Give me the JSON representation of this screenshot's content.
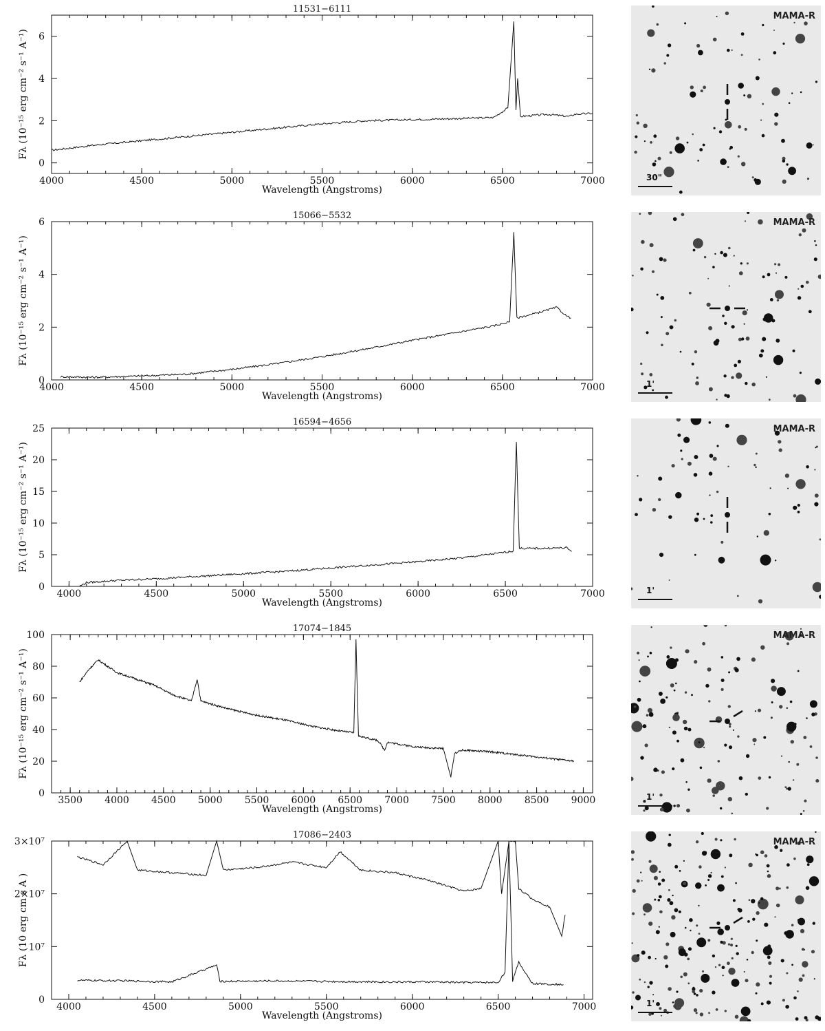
{
  "sky_label": "MAMA-R",
  "chart_data": [
    {
      "type": "line",
      "title": "11531−6111",
      "xlabel": "Wavelength (Angstroms)",
      "ylabel": "Fλ (10⁻¹⁵ erg cm⁻² s⁻¹ A⁻¹)",
      "xlim": [
        4000,
        7000
      ],
      "ylim": [
        -0.5,
        7
      ],
      "xticks": [
        4000,
        4500,
        5000,
        5500,
        6000,
        6500,
        7000
      ],
      "yticks": [
        0,
        2,
        4,
        6
      ],
      "ytick_labels": [
        "0",
        "2",
        "4",
        "6"
      ],
      "series": [
        {
          "x": [
            4000,
            4250,
            4500,
            4750,
            5000,
            5250,
            5500,
            5750,
            6000,
            6250,
            6450,
            6530,
            6563,
            6575,
            6584,
            6600,
            6750,
            6870,
            6900,
            7000
          ],
          "y": [
            0.6,
            0.85,
            1.05,
            1.25,
            1.45,
            1.65,
            1.85,
            2.0,
            2.05,
            2.1,
            2.15,
            2.6,
            6.7,
            2.5,
            4.0,
            2.2,
            2.3,
            2.2,
            2.3,
            2.35
          ]
        }
      ],
      "finding_chart": {
        "scale": "30\"",
        "marker": "vertical-ticks"
      }
    },
    {
      "type": "line",
      "title": "15066−5532",
      "xlabel": "Wavelength (Angstroms)",
      "ylabel": "Fλ (10⁻¹⁵ erg cm⁻² s⁻¹ A⁻¹)",
      "xlim": [
        4000,
        7000
      ],
      "ylim": [
        0,
        6
      ],
      "xticks": [
        4000,
        4500,
        5000,
        5500,
        6000,
        6500,
        7000
      ],
      "yticks": [
        0,
        2,
        4,
        6
      ],
      "ytick_labels": [
        "0",
        "2",
        "4",
        "6"
      ],
      "series": [
        {
          "x": [
            4050,
            4250,
            4500,
            4750,
            5000,
            5250,
            5500,
            5750,
            6000,
            6250,
            6450,
            6540,
            6563,
            6580,
            6700,
            6800,
            6860,
            6880
          ],
          "y": [
            0.12,
            0.1,
            0.15,
            0.22,
            0.4,
            0.62,
            0.88,
            1.18,
            1.5,
            1.8,
            2.05,
            2.2,
            5.6,
            2.35,
            2.55,
            2.75,
            2.4,
            2.35
          ]
        }
      ],
      "finding_chart": {
        "scale": "1'",
        "marker": "horizontal-ticks"
      }
    },
    {
      "type": "line",
      "title": "16594−4656",
      "xlabel": "Wavelength (Angstroms)",
      "ylabel": "Fλ (10⁻¹⁵ erg cm⁻² s⁻¹ A⁻¹)",
      "xlim": [
        3900,
        7000
      ],
      "ylim": [
        0,
        25
      ],
      "xticks": [
        4000,
        4500,
        5000,
        5500,
        6000,
        6500,
        7000
      ],
      "yticks": [
        0,
        5,
        10,
        15,
        20,
        25
      ],
      "ytick_labels": [
        "0",
        "5",
        "10",
        "15",
        "20",
        "25"
      ],
      "series": [
        {
          "x": [
            4060,
            4100,
            4250,
            4500,
            4750,
            5000,
            5250,
            5500,
            5750,
            6000,
            6250,
            6450,
            6545,
            6563,
            6580,
            6700,
            6850,
            6880
          ],
          "y": [
            0.0,
            0.6,
            0.9,
            1.2,
            1.6,
            2.0,
            2.4,
            2.9,
            3.4,
            3.9,
            4.5,
            5.2,
            5.6,
            22.8,
            6.0,
            6.0,
            6.1,
            5.5
          ]
        }
      ],
      "finding_chart": {
        "scale": "1'",
        "marker": "vertical-ticks"
      }
    },
    {
      "type": "line",
      "title": "17074−1845",
      "xlabel": "Wavelength (Angstroms)",
      "ylabel": "Fλ (10⁻¹⁵ erg cm⁻² s⁻¹ A⁻¹)",
      "xlim": [
        3300,
        9100
      ],
      "ylim": [
        0,
        100
      ],
      "xticks": [
        3500,
        4000,
        4500,
        5000,
        5500,
        6000,
        6500,
        7000,
        7500,
        8000,
        8500,
        9000
      ],
      "yticks": [
        0,
        20,
        40,
        60,
        80,
        100
      ],
      "ytick_labels": [
        "0",
        "20",
        "40",
        "60",
        "80",
        "100"
      ],
      "series": [
        {
          "x": [
            3600,
            3700,
            3800,
            3900,
            4000,
            4200,
            4400,
            4600,
            4800,
            4861,
            4900,
            5200,
            5500,
            5800,
            6100,
            6400,
            6540,
            6563,
            6590,
            6800,
            6870,
            6900,
            7200,
            7500,
            7580,
            7620,
            7700,
            8000,
            8300,
            8600,
            8900
          ],
          "y": [
            70,
            78,
            84,
            80,
            76,
            72,
            68,
            62,
            58,
            72,
            58,
            53,
            49,
            46,
            42,
            39,
            38,
            97,
            36,
            33,
            27,
            32,
            29,
            28,
            10,
            25,
            27,
            26,
            24,
            22,
            20
          ]
        }
      ],
      "finding_chart": {
        "scale": "1'",
        "marker": "angled-ticks"
      }
    },
    {
      "type": "line",
      "title": "17086−2403",
      "xlabel": "Wavelength (Angstroms)",
      "ylabel": "Fλ (10 erg cm s A )",
      "xlim": [
        3900,
        7050
      ],
      "ylim": [
        0,
        30000000
      ],
      "xticks": [
        4000,
        4500,
        5000,
        5500,
        6000,
        6500,
        7000
      ],
      "yticks": [
        0,
        10000000,
        20000000,
        30000000
      ],
      "ytick_labels": [
        "0",
        "10⁷",
        "2×10⁷",
        "3×10⁷"
      ],
      "series": [
        {
          "name": "upper",
          "x": [
            4050,
            4200,
            4340,
            4400,
            4600,
            4800,
            4861,
            4900,
            5100,
            5300,
            5500,
            5580,
            5700,
            5900,
            6100,
            6300,
            6400,
            6500,
            6520,
            6563,
            6600,
            6620,
            6700,
            6800,
            6870,
            6890
          ],
          "y": [
            27000000,
            25500000,
            30000000,
            24500000,
            24000000,
            23500000,
            30000000,
            24500000,
            25000000,
            26000000,
            25000000,
            28000000,
            24500000,
            24000000,
            22500000,
            20500000,
            21000000,
            30000000,
            20000000,
            30000000,
            30000000,
            21000000,
            19000000,
            17500000,
            12000000,
            16000000
          ]
        },
        {
          "name": "lower",
          "x": [
            4050,
            4340,
            4600,
            4861,
            4880,
            5200,
            5500,
            5800,
            6100,
            6300,
            6500,
            6540,
            6563,
            6584,
            6620,
            6700,
            6880
          ],
          "y": [
            3600000,
            3500000,
            3300000,
            6500000,
            3400000,
            3500000,
            3400000,
            3300000,
            3300000,
            3200000,
            3200000,
            5200000,
            30000000,
            3500000,
            7000000,
            3000000,
            2800000
          ]
        }
      ],
      "finding_chart": {
        "scale": "1'",
        "marker": "angled-ticks"
      }
    }
  ]
}
